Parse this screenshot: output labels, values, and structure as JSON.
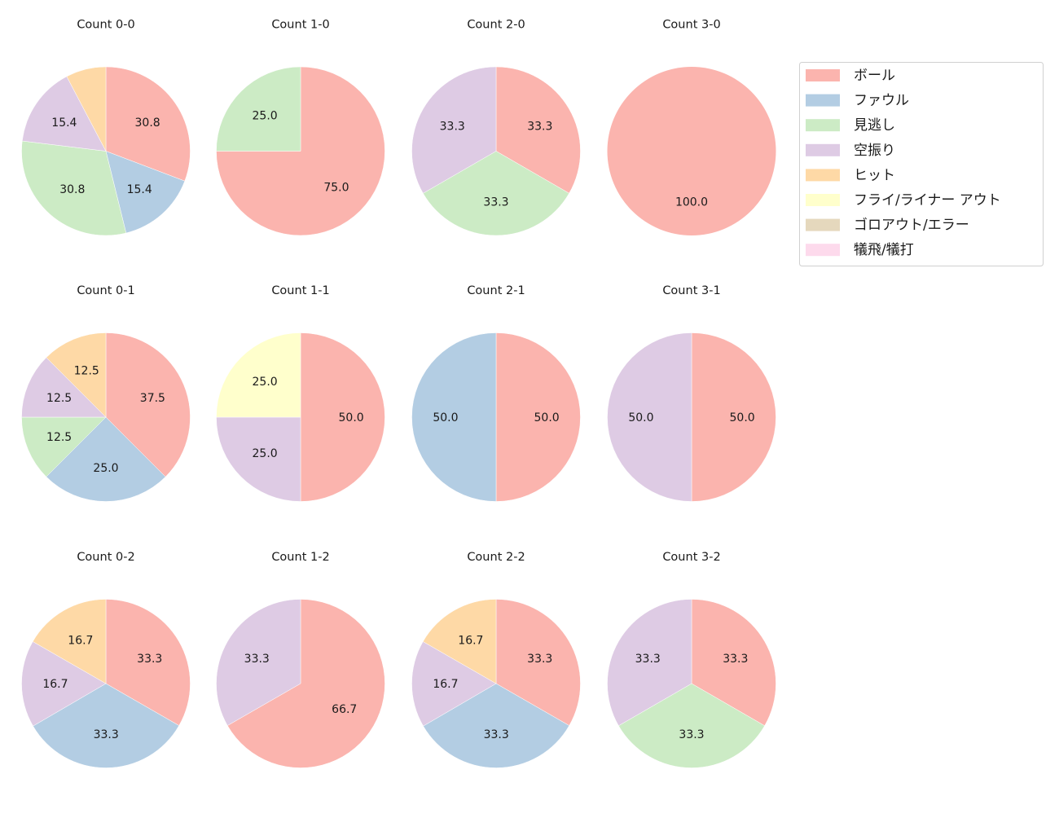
{
  "chart_data": {
    "type": "pie",
    "legend": {
      "placement": "top-right",
      "entries": [
        "ボール",
        "ファウル",
        "見逃し",
        "空振り",
        "ヒット",
        "フライ/ライナー アウト",
        "ゴロアウト/エラー",
        "犠飛/犠打"
      ],
      "colors": [
        "#fbb4ae",
        "#b3cde3",
        "#ccebc5",
        "#decbe4",
        "#fed9a6",
        "#ffffcc",
        "#e5d8bd",
        "#fddaec"
      ]
    },
    "direction": "clockwise",
    "start": "top",
    "charts": [
      {
        "title": "Count 0-0",
        "values": [
          30.8,
          15.4,
          30.8,
          15.4,
          7.7,
          0,
          0,
          0
        ],
        "labels": [
          "30.8",
          "15.4",
          "30.8",
          "15.4",
          "",
          "",
          "",
          ""
        ]
      },
      {
        "title": "Count 1-0",
        "values": [
          75.0,
          0,
          25.0,
          0,
          0,
          0,
          0,
          0
        ],
        "labels": [
          "75.0",
          "",
          "25.0",
          "",
          "",
          "",
          "",
          ""
        ]
      },
      {
        "title": "Count 2-0",
        "values": [
          33.3,
          0,
          33.3,
          33.3,
          0,
          0,
          0,
          0
        ],
        "labels": [
          "33.3",
          "",
          "33.3",
          "33.3",
          "",
          "",
          "",
          ""
        ]
      },
      {
        "title": "Count 3-0",
        "values": [
          100.0,
          0,
          0,
          0,
          0,
          0,
          0,
          0
        ],
        "labels": [
          "100.0",
          "",
          "",
          "",
          "",
          "",
          "",
          ""
        ]
      },
      {
        "title": "Count 0-1",
        "values": [
          37.5,
          25.0,
          12.5,
          12.5,
          12.5,
          0,
          0,
          0
        ],
        "labels": [
          "37.5",
          "25.0",
          "12.5",
          "12.5",
          "12.5",
          "",
          "",
          ""
        ]
      },
      {
        "title": "Count 1-1",
        "values": [
          50.0,
          0,
          0,
          25.0,
          0,
          25.0,
          0,
          0
        ],
        "labels": [
          "50.0",
          "",
          "",
          "25.0",
          "",
          "25.0",
          "",
          ""
        ]
      },
      {
        "title": "Count 2-1",
        "values": [
          50.0,
          50.0,
          0,
          0,
          0,
          0,
          0,
          0
        ],
        "labels": [
          "50.0",
          "50.0",
          "",
          "",
          "",
          "",
          "",
          ""
        ]
      },
      {
        "title": "Count 3-1",
        "values": [
          50.0,
          0,
          0,
          50.0,
          0,
          0,
          0,
          0
        ],
        "labels": [
          "50.0",
          "",
          "",
          "50.0",
          "",
          "",
          "",
          ""
        ]
      },
      {
        "title": "Count 0-2",
        "values": [
          33.3,
          33.3,
          0,
          16.7,
          16.7,
          0,
          0,
          0
        ],
        "labels": [
          "33.3",
          "33.3",
          "",
          "16.7",
          "16.7",
          "",
          "",
          ""
        ]
      },
      {
        "title": "Count 1-2",
        "values": [
          66.7,
          0,
          0,
          33.3,
          0,
          0,
          0,
          0
        ],
        "labels": [
          "66.7",
          "",
          "",
          "33.3",
          "",
          "",
          "",
          ""
        ]
      },
      {
        "title": "Count 2-2",
        "values": [
          33.3,
          33.3,
          0,
          16.7,
          16.7,
          0,
          0,
          0
        ],
        "labels": [
          "33.3",
          "33.3",
          "",
          "16.7",
          "16.7",
          "",
          "",
          ""
        ]
      },
      {
        "title": "Count 3-2",
        "values": [
          33.3,
          0,
          33.3,
          33.3,
          0,
          0,
          0,
          0
        ],
        "labels": [
          "33.3",
          "",
          "33.3",
          "33.3",
          "",
          "",
          "",
          ""
        ]
      }
    ]
  }
}
